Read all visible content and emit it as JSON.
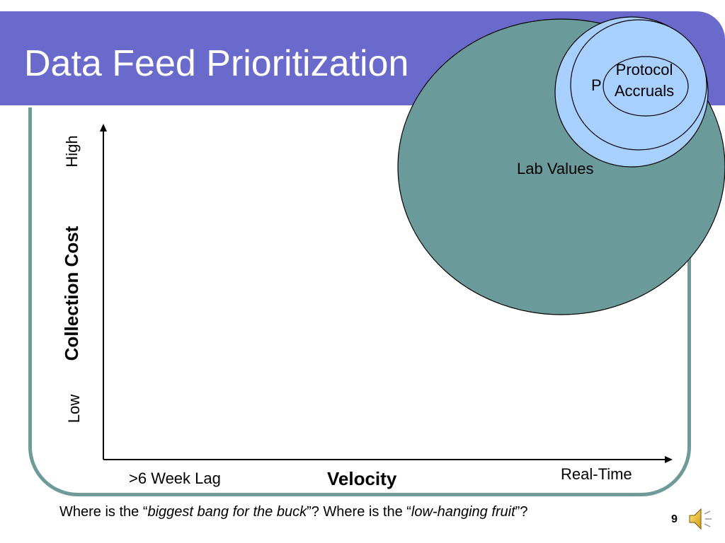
{
  "slide": {
    "title": "Data Feed Prioritization",
    "page_number": "9",
    "icons": {
      "speaker": "speaker-icon"
    }
  },
  "axes": {
    "y_axis_label": "Collection Cost",
    "y_high": "High",
    "y_low": "Low",
    "x_axis_label": "Velocity",
    "x_low": ">6 Week Lag",
    "x_high": "Real-Time"
  },
  "bubbles": {
    "lab_values": "Lab Values",
    "partial_label": "P",
    "protocol_accruals": "Protocol Accruals"
  },
  "footer": {
    "part1": "Where is the “",
    "emph1": "biggest bang for the buck",
    "part2": "”? Where is the “",
    "emph2": "low-hanging fruit",
    "part3": "”?"
  },
  "colors": {
    "title_bar": "#6a6acc",
    "frame": "#6f9a9a",
    "lab_bubble": "#6a9a9a",
    "small_bubble": "#a8d0ff"
  }
}
